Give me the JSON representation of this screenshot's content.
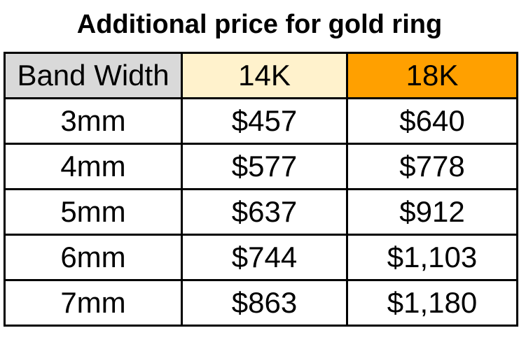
{
  "title": "Additional price for gold ring",
  "chart_data": {
    "type": "table",
    "title": "Additional price for gold ring",
    "columns": [
      "Band Width",
      "14K",
      "18K"
    ],
    "rows": [
      [
        "3mm",
        "$457",
        "$640"
      ],
      [
        "4mm",
        "$577",
        "$778"
      ],
      [
        "5mm",
        "$637",
        "$912"
      ],
      [
        "6mm",
        "$744",
        "$1,103"
      ],
      [
        "7mm",
        "$863",
        "$1,180"
      ]
    ],
    "layout": {
      "header_alignment": "center",
      "cell_alignment": "center",
      "grid": "on"
    }
  },
  "colors": {
    "header_band_width_bg": "#D9D9D9",
    "header_14k_bg": "#FFF2CC",
    "header_18k_bg": "#FFA000",
    "border": "#000000",
    "text": "#000000",
    "background": "#FFFFFF"
  }
}
